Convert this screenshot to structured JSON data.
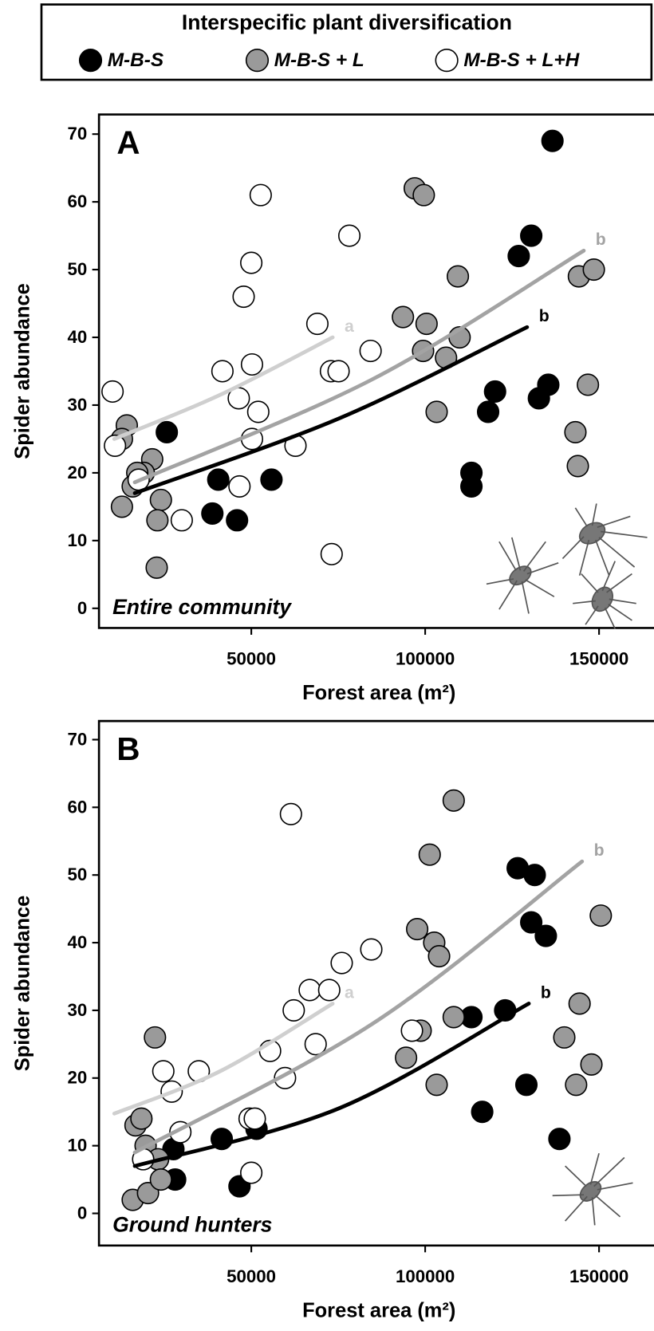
{
  "chart_data": [
    {
      "type": "scatter",
      "panel": "A",
      "legend_title": "Interspecific plant diversification",
      "annotation": "Entire community",
      "xlabel": "Forest area (m²)",
      "ylabel": "Spider abundance",
      "xlim": [
        6200,
        165800
      ],
      "ylim": [
        -2.9,
        72.9
      ],
      "xticks": [
        50000,
        100000,
        150000
      ],
      "yticks": [
        0,
        10,
        20,
        30,
        40,
        50,
        60,
        70
      ],
      "series": [
        {
          "name": "M-B-S",
          "color": "#000000",
          "x": [
            25700,
            40500,
            38800,
            45900,
            55800,
            113300,
            113300,
            120100,
            118100,
            126900,
            130500,
            132700,
            135400,
            136600
          ],
          "y": [
            26,
            19,
            14,
            13,
            19,
            20,
            18,
            32,
            29,
            52,
            55,
            31,
            33,
            69
          ]
        },
        {
          "name": "M-B-S + L",
          "color": "#9a9a9a",
          "x": [
            14200,
            12800,
            12800,
            21500,
            19100,
            17200,
            15900,
            24000,
            23000,
            22800,
            97000,
            99600,
            93600,
            100400,
            99400,
            106000,
            103300,
            109400,
            109900,
            144200,
            148500,
            146800,
            143200,
            143900
          ],
          "y": [
            27,
            25,
            15,
            22,
            20,
            20,
            18,
            16,
            13,
            6,
            62,
            61,
            43,
            42,
            38,
            37,
            29,
            49,
            40,
            49,
            50,
            33,
            26,
            21
          ]
        },
        {
          "name": "M-B-S + L+H",
          "color": "#ffffff",
          "x": [
            10100,
            10800,
            17600,
            30000,
            41700,
            46400,
            47800,
            50000,
            52700,
            50200,
            50200,
            52000,
            46600,
            62700,
            69000,
            78200,
            72900,
            75100,
            84300,
            73100
          ],
          "y": [
            32,
            24,
            19,
            13,
            35,
            31,
            46,
            51,
            61,
            36,
            25,
            29,
            18,
            24,
            42,
            55,
            35,
            35,
            38,
            8
          ]
        }
      ],
      "fits": [
        {
          "label": "a",
          "color": "#cfcfcf",
          "x": [
            10600,
            41000,
            73400
          ],
          "y": [
            25,
            31.5,
            40
          ]
        },
        {
          "label": "b",
          "color": "#a3a3a3",
          "x": [
            16500,
            84800,
            145600
          ],
          "y": [
            18.6,
            33.8,
            52.8
          ]
        },
        {
          "label": "b",
          "color": "#000000",
          "x": [
            16500,
            75100,
            129300
          ],
          "y": [
            17,
            28,
            41.5
          ]
        }
      ]
    },
    {
      "type": "scatter",
      "panel": "B",
      "annotation": "Ground hunters",
      "xlabel": "Forest area (m²)",
      "ylabel": "Spider abundance",
      "xlim": [
        6200,
        165800
      ],
      "ylim": [
        -4.75,
        72.75
      ],
      "xticks": [
        50000,
        100000,
        150000
      ],
      "yticks": [
        0,
        10,
        20,
        30,
        40,
        50,
        60,
        70
      ],
      "series": [
        {
          "color": "#000000",
          "x": [
            28100,
            27600,
            41500,
            46600,
            51500,
            113300,
            116400,
            123000,
            126600,
            131500,
            130500,
            134700,
            129100,
            138600
          ],
          "y": [
            5,
            9.5,
            11,
            4,
            12.5,
            29,
            15,
            30,
            51,
            50,
            43,
            41,
            19,
            11
          ]
        },
        {
          "color": "#9a9a9a",
          "x": [
            15900,
            20300,
            16700,
            18400,
            19600,
            22300,
            23200,
            24000,
            97700,
            102600,
            104000,
            94500,
            98700,
            103300,
            108200,
            101300,
            108200,
            144400,
            150500,
            140000,
            147800,
            143400
          ],
          "y": [
            2,
            3,
            13,
            14,
            10,
            26,
            8,
            5,
            42,
            40,
            38,
            23,
            27,
            19,
            29,
            53,
            61,
            31,
            44,
            26,
            22,
            19
          ]
        },
        {
          "color": "#ffffff",
          "x": [
            18900,
            24700,
            27100,
            29600,
            34900,
            49500,
            51000,
            50000,
            55400,
            59700,
            62200,
            61400,
            66800,
            72400,
            68500,
            76000,
            84500,
            96200
          ],
          "y": [
            8,
            21,
            18,
            12,
            21,
            14,
            14,
            6,
            24,
            20,
            30,
            59,
            33,
            33,
            25,
            37,
            39,
            27
          ]
        }
      ],
      "fits": [
        {
          "label": "a",
          "color": "#cfcfcf",
          "x": [
            10600,
            41000,
            73400
          ],
          "y": [
            14.75,
            21,
            31
          ]
        },
        {
          "label": "b",
          "color": "#a3a3a3",
          "x": [
            16500,
            84800,
            145100
          ],
          "y": [
            9,
            28,
            52
          ]
        },
        {
          "label": "b",
          "color": "#000000",
          "x": [
            16500,
            75100,
            129800
          ],
          "y": [
            7,
            15.5,
            31
          ]
        }
      ]
    }
  ]
}
